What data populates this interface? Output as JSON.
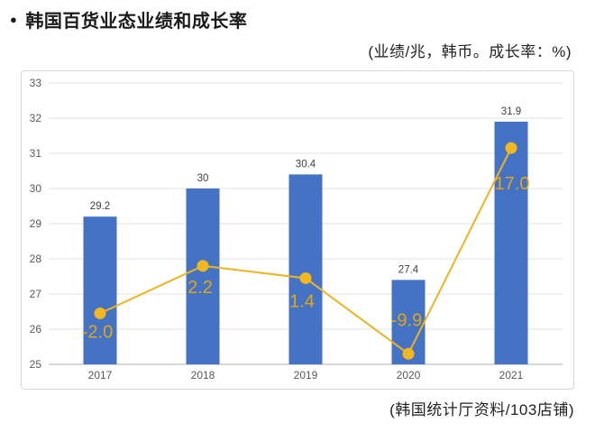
{
  "header": {
    "bullet": "●",
    "title": "韩国百货业态业绩和成长率",
    "units_note": "(业绩/兆，韩币。成长率：%)"
  },
  "footer": {
    "source": "(韩国统计厅资料/103店铺)"
  },
  "chart_data": {
    "type": "bar",
    "subtype": "combo-bar-line",
    "title": "韩国百货业态业绩和成长率",
    "categories": [
      "2017",
      "2018",
      "2019",
      "2020",
      "2021"
    ],
    "series": [
      {
        "name": "业绩",
        "type": "bar",
        "values": [
          29.2,
          30,
          30.4,
          27.4,
          31.9
        ],
        "labels": [
          "29.2",
          "30",
          "30.4",
          "27.4",
          "31.9"
        ],
        "color": "#4472C4"
      },
      {
        "name": "成长率",
        "type": "line",
        "values": [
          -2.0,
          2.2,
          1.4,
          -9.9,
          17.0
        ],
        "labels": [
          "-2.0",
          "2.2",
          "1.4",
          "-9.9",
          "17.0"
        ],
        "color": "#EFB31F",
        "label_color": "#E2A713",
        "plotted_on_primary_axis": [
          26.45,
          27.8,
          27.45,
          25.3,
          31.15
        ],
        "label_offsets": [
          [
            -3,
            27
          ],
          [
            -3,
            30
          ],
          [
            -4,
            32
          ],
          [
            -2,
            -31
          ],
          [
            1,
            46
          ]
        ]
      }
    ],
    "xlabel": "",
    "ylabel": "",
    "ylim": [
      25,
      33
    ],
    "yticks": [
      25,
      26,
      27,
      28,
      29,
      30,
      31,
      32,
      33
    ],
    "grid": true,
    "legend": "none",
    "colors": {
      "bar": "#4472C4",
      "line": "#EFB31F",
      "marker": "#F2B81E",
      "line_label": "#E2A713",
      "bar_label": "#3F3F3F",
      "tick_label": "#595959",
      "gridline": "#E3E3E3",
      "axis_line": "#BFBFBF",
      "box_border": "#D8D8D8"
    }
  }
}
